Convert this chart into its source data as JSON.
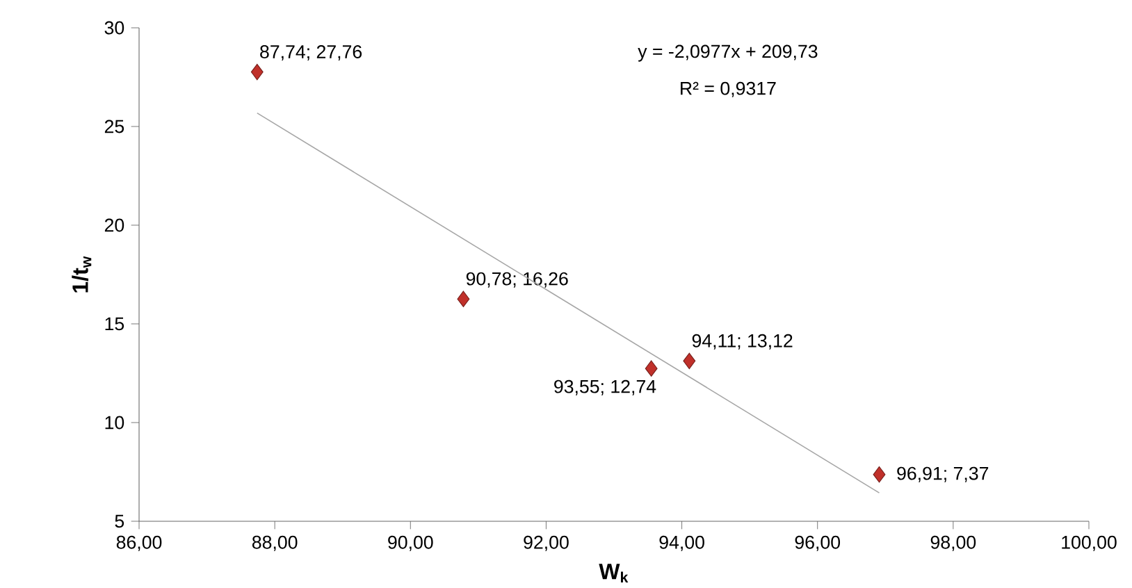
{
  "chart_data": {
    "type": "scatter",
    "xlabel": "W$_{k}$",
    "ylabel": "1/t$_{w}$",
    "annotations": [
      "y = -2,0977x + 209,73",
      "R² = 0,9317"
    ],
    "series": [
      {
        "color": "#c0302a",
        "marker": "diamond",
        "x": [
          87.74,
          90.78,
          93.55,
          94.11,
          96.91
        ],
        "values": [
          27.76,
          16.26,
          12.74,
          13.12,
          7.37
        ],
        "value_labels": [
          "87,74; 27,76",
          "90,78; 16,26",
          "93,55; 12,74",
          "94,11; 13,12",
          "96,91; 7,37"
        ]
      },
      {
        "type": "line",
        "color": "#a6a6a6",
        "x": [
          87.74,
          96.91
        ],
        "values": [
          25.68,
          6.44
        ]
      }
    ],
    "xlim": [
      86,
      100
    ],
    "ylim": [
      5,
      30
    ],
    "xticks": [
      {
        "value": 86,
        "label": "86,00"
      },
      {
        "value": 88,
        "label": "88,00"
      },
      {
        "value": 90,
        "label": "90,00"
      },
      {
        "value": 92,
        "label": "92,00"
      },
      {
        "value": 94,
        "label": "94,00"
      },
      {
        "value": 96,
        "label": "96,00"
      },
      {
        "value": 98,
        "label": "98,00"
      },
      {
        "value": 100,
        "label": "100,00"
      }
    ],
    "yticks": [
      5,
      10,
      15,
      20,
      25,
      30
    ],
    "grid": false
  }
}
